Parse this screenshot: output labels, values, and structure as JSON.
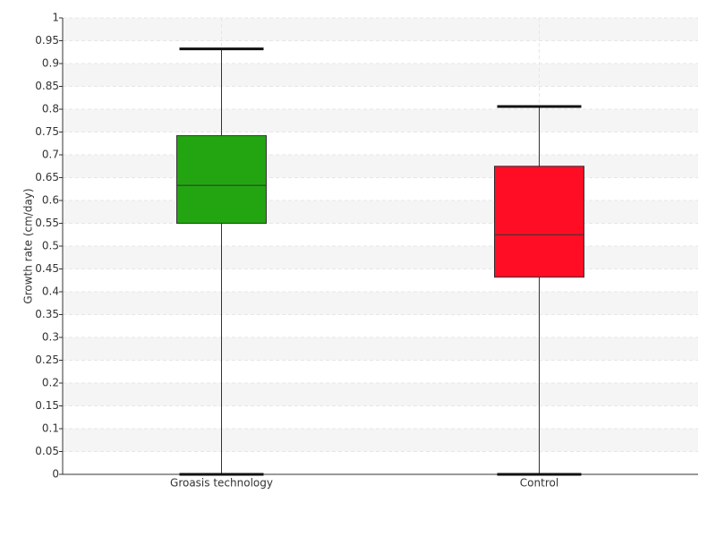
{
  "chart_data": {
    "type": "box",
    "y_label": "Growth rate (cm/day)",
    "categories": [
      "Groasis technology",
      "Control"
    ],
    "boxes": [
      {
        "min": 0,
        "q1": 0.55,
        "median": 0.633,
        "q3": 0.742,
        "max": 0.932,
        "color": "#22a511"
      },
      {
        "min": 0,
        "q1": 0.432,
        "median": 0.525,
        "q3": 0.675,
        "max": 0.806,
        "color": "#ff0d25"
      }
    ],
    "ylim": [
      0,
      1
    ],
    "yticks": [
      0,
      0.05,
      0.1,
      0.15,
      0.2,
      0.25,
      0.3,
      0.35,
      0.4,
      0.45,
      0.5,
      0.55,
      0.6,
      0.65,
      0.7,
      0.75,
      0.8,
      0.85,
      0.9,
      0.95,
      1
    ],
    "grid": true
  }
}
